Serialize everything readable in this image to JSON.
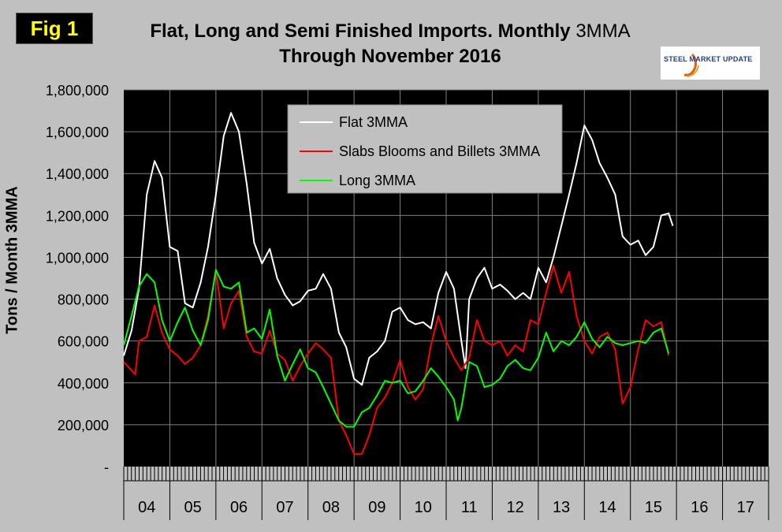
{
  "badge": "Fig 1",
  "title": {
    "line1_bold": "Flat, Long and Semi Finished Imports. Monthly ",
    "line1_plain": "3MMA",
    "line2": "Through November 2016"
  },
  "logo": {
    "text": "STEEL MARKET UPDATE"
  },
  "colors": {
    "plot_bg": "#000000",
    "frame_bg": "#c0c0c0",
    "badge_text": "#ffff00",
    "flat": "#ffffff",
    "slabs": "#ff0000",
    "long": "#00ff00"
  },
  "chart_data": {
    "type": "line",
    "ylabel": "Tons / Month 3MMA",
    "ylim": [
      0,
      1800000
    ],
    "yticks": [
      0,
      200000,
      400000,
      600000,
      800000,
      1000000,
      1200000,
      1400000,
      1600000,
      1800000
    ],
    "ytick_labels": [
      "-",
      "200,000",
      "400,000",
      "600,000",
      "800,000",
      "1,000,000",
      "1,200,000",
      "1,400,000",
      "1,600,000",
      "1,800,000"
    ],
    "x_unit": "year",
    "xlim": [
      2004,
      2018
    ],
    "year_labels": [
      "04",
      "05",
      "06",
      "07",
      "08",
      "09",
      "10",
      "11",
      "12",
      "13",
      "14",
      "15",
      "16",
      "17"
    ],
    "grid": true,
    "legend_position": "top-center",
    "series": [
      {
        "name": "Flat 3MMA",
        "color_key": "flat",
        "points": [
          [
            2004.0,
            530000
          ],
          [
            2004.17,
            650000
          ],
          [
            2004.33,
            850000
          ],
          [
            2004.5,
            1300000
          ],
          [
            2004.67,
            1460000
          ],
          [
            2004.83,
            1380000
          ],
          [
            2005.0,
            1050000
          ],
          [
            2005.17,
            1030000
          ],
          [
            2005.33,
            780000
          ],
          [
            2005.5,
            760000
          ],
          [
            2005.67,
            880000
          ],
          [
            2005.83,
            1050000
          ],
          [
            2006.0,
            1300000
          ],
          [
            2006.17,
            1580000
          ],
          [
            2006.33,
            1690000
          ],
          [
            2006.5,
            1600000
          ],
          [
            2006.67,
            1350000
          ],
          [
            2006.83,
            1070000
          ],
          [
            2007.0,
            970000
          ],
          [
            2007.17,
            1040000
          ],
          [
            2007.33,
            900000
          ],
          [
            2007.5,
            820000
          ],
          [
            2007.67,
            770000
          ],
          [
            2007.83,
            790000
          ],
          [
            2008.0,
            840000
          ],
          [
            2008.17,
            850000
          ],
          [
            2008.33,
            920000
          ],
          [
            2008.5,
            850000
          ],
          [
            2008.67,
            640000
          ],
          [
            2008.83,
            570000
          ],
          [
            2009.0,
            420000
          ],
          [
            2009.17,
            390000
          ],
          [
            2009.33,
            520000
          ],
          [
            2009.5,
            550000
          ],
          [
            2009.67,
            600000
          ],
          [
            2009.83,
            740000
          ],
          [
            2010.0,
            760000
          ],
          [
            2010.17,
            700000
          ],
          [
            2010.33,
            680000
          ],
          [
            2010.5,
            690000
          ],
          [
            2010.67,
            660000
          ],
          [
            2010.83,
            830000
          ],
          [
            2011.0,
            930000
          ],
          [
            2011.17,
            850000
          ],
          [
            2011.33,
            600000
          ],
          [
            2011.42,
            470000
          ],
          [
            2011.5,
            800000
          ],
          [
            2011.67,
            900000
          ],
          [
            2011.83,
            950000
          ],
          [
            2012.0,
            850000
          ],
          [
            2012.17,
            870000
          ],
          [
            2012.33,
            840000
          ],
          [
            2012.5,
            800000
          ],
          [
            2012.67,
            830000
          ],
          [
            2012.83,
            800000
          ],
          [
            2013.0,
            950000
          ],
          [
            2013.17,
            880000
          ],
          [
            2013.33,
            1000000
          ],
          [
            2013.5,
            1150000
          ],
          [
            2013.67,
            1300000
          ],
          [
            2013.83,
            1450000
          ],
          [
            2014.0,
            1630000
          ],
          [
            2014.17,
            1560000
          ],
          [
            2014.33,
            1450000
          ],
          [
            2014.5,
            1380000
          ],
          [
            2014.67,
            1300000
          ],
          [
            2014.83,
            1100000
          ],
          [
            2015.0,
            1060000
          ],
          [
            2015.17,
            1080000
          ],
          [
            2015.33,
            1010000
          ],
          [
            2015.5,
            1050000
          ],
          [
            2015.67,
            1200000
          ],
          [
            2015.83,
            1210000
          ],
          [
            2015.92,
            1150000
          ]
        ]
      },
      {
        "name": "Slabs Blooms and Billets 3MMA",
        "color_key": "slabs",
        "points": [
          [
            2004.0,
            500000
          ],
          [
            2004.17,
            460000
          ],
          [
            2004.25,
            440000
          ],
          [
            2004.33,
            600000
          ],
          [
            2004.5,
            620000
          ],
          [
            2004.67,
            770000
          ],
          [
            2004.83,
            640000
          ],
          [
            2005.0,
            560000
          ],
          [
            2005.17,
            530000
          ],
          [
            2005.33,
            490000
          ],
          [
            2005.5,
            520000
          ],
          [
            2005.67,
            580000
          ],
          [
            2005.83,
            720000
          ],
          [
            2006.0,
            940000
          ],
          [
            2006.17,
            660000
          ],
          [
            2006.33,
            780000
          ],
          [
            2006.5,
            840000
          ],
          [
            2006.67,
            620000
          ],
          [
            2006.83,
            550000
          ],
          [
            2007.0,
            540000
          ],
          [
            2007.17,
            650000
          ],
          [
            2007.33,
            540000
          ],
          [
            2007.5,
            510000
          ],
          [
            2007.67,
            410000
          ],
          [
            2007.83,
            480000
          ],
          [
            2008.0,
            540000
          ],
          [
            2008.17,
            590000
          ],
          [
            2008.33,
            560000
          ],
          [
            2008.5,
            520000
          ],
          [
            2008.67,
            220000
          ],
          [
            2008.83,
            150000
          ],
          [
            2009.0,
            60000
          ],
          [
            2009.17,
            60000
          ],
          [
            2009.33,
            150000
          ],
          [
            2009.5,
            280000
          ],
          [
            2009.67,
            330000
          ],
          [
            2009.83,
            400000
          ],
          [
            2010.0,
            510000
          ],
          [
            2010.17,
            380000
          ],
          [
            2010.33,
            320000
          ],
          [
            2010.5,
            370000
          ],
          [
            2010.67,
            580000
          ],
          [
            2010.83,
            720000
          ],
          [
            2011.0,
            600000
          ],
          [
            2011.17,
            520000
          ],
          [
            2011.33,
            460000
          ],
          [
            2011.5,
            520000
          ],
          [
            2011.67,
            700000
          ],
          [
            2011.83,
            600000
          ],
          [
            2012.0,
            580000
          ],
          [
            2012.17,
            600000
          ],
          [
            2012.33,
            530000
          ],
          [
            2012.5,
            580000
          ],
          [
            2012.67,
            550000
          ],
          [
            2012.83,
            700000
          ],
          [
            2013.0,
            680000
          ],
          [
            2013.17,
            830000
          ],
          [
            2013.33,
            960000
          ],
          [
            2013.5,
            830000
          ],
          [
            2013.67,
            930000
          ],
          [
            2013.83,
            720000
          ],
          [
            2014.0,
            600000
          ],
          [
            2014.17,
            540000
          ],
          [
            2014.33,
            620000
          ],
          [
            2014.5,
            640000
          ],
          [
            2014.67,
            560000
          ],
          [
            2014.83,
            300000
          ],
          [
            2015.0,
            380000
          ],
          [
            2015.17,
            560000
          ],
          [
            2015.33,
            700000
          ],
          [
            2015.5,
            670000
          ],
          [
            2015.67,
            690000
          ],
          [
            2015.83,
            530000
          ]
        ]
      },
      {
        "name": "Long 3MMA",
        "color_key": "long",
        "points": [
          [
            2004.0,
            580000
          ],
          [
            2004.17,
            720000
          ],
          [
            2004.33,
            860000
          ],
          [
            2004.5,
            920000
          ],
          [
            2004.67,
            880000
          ],
          [
            2004.83,
            700000
          ],
          [
            2005.0,
            600000
          ],
          [
            2005.17,
            690000
          ],
          [
            2005.33,
            760000
          ],
          [
            2005.5,
            650000
          ],
          [
            2005.67,
            580000
          ],
          [
            2005.83,
            700000
          ],
          [
            2006.0,
            940000
          ],
          [
            2006.17,
            860000
          ],
          [
            2006.33,
            850000
          ],
          [
            2006.5,
            880000
          ],
          [
            2006.67,
            640000
          ],
          [
            2006.83,
            660000
          ],
          [
            2007.0,
            610000
          ],
          [
            2007.17,
            750000
          ],
          [
            2007.33,
            530000
          ],
          [
            2007.5,
            410000
          ],
          [
            2007.67,
            490000
          ],
          [
            2007.83,
            560000
          ],
          [
            2008.0,
            470000
          ],
          [
            2008.17,
            450000
          ],
          [
            2008.33,
            380000
          ],
          [
            2008.5,
            300000
          ],
          [
            2008.67,
            220000
          ],
          [
            2008.83,
            190000
          ],
          [
            2009.0,
            190000
          ],
          [
            2009.17,
            260000
          ],
          [
            2009.33,
            280000
          ],
          [
            2009.5,
            340000
          ],
          [
            2009.67,
            410000
          ],
          [
            2009.83,
            400000
          ],
          [
            2010.0,
            410000
          ],
          [
            2010.17,
            350000
          ],
          [
            2010.33,
            360000
          ],
          [
            2010.5,
            410000
          ],
          [
            2010.67,
            470000
          ],
          [
            2010.83,
            430000
          ],
          [
            2011.0,
            380000
          ],
          [
            2011.17,
            320000
          ],
          [
            2011.25,
            220000
          ],
          [
            2011.33,
            280000
          ],
          [
            2011.5,
            500000
          ],
          [
            2011.67,
            480000
          ],
          [
            2011.83,
            380000
          ],
          [
            2012.0,
            390000
          ],
          [
            2012.17,
            420000
          ],
          [
            2012.33,
            480000
          ],
          [
            2012.5,
            510000
          ],
          [
            2012.67,
            470000
          ],
          [
            2012.83,
            460000
          ],
          [
            2013.0,
            520000
          ],
          [
            2013.17,
            640000
          ],
          [
            2013.33,
            550000
          ],
          [
            2013.5,
            600000
          ],
          [
            2013.67,
            580000
          ],
          [
            2013.83,
            620000
          ],
          [
            2014.0,
            690000
          ],
          [
            2014.17,
            610000
          ],
          [
            2014.33,
            570000
          ],
          [
            2014.5,
            620000
          ],
          [
            2014.67,
            590000
          ],
          [
            2014.83,
            580000
          ],
          [
            2015.0,
            590000
          ],
          [
            2015.17,
            600000
          ],
          [
            2015.33,
            590000
          ],
          [
            2015.5,
            640000
          ],
          [
            2015.67,
            660000
          ],
          [
            2015.83,
            540000
          ]
        ]
      }
    ]
  }
}
